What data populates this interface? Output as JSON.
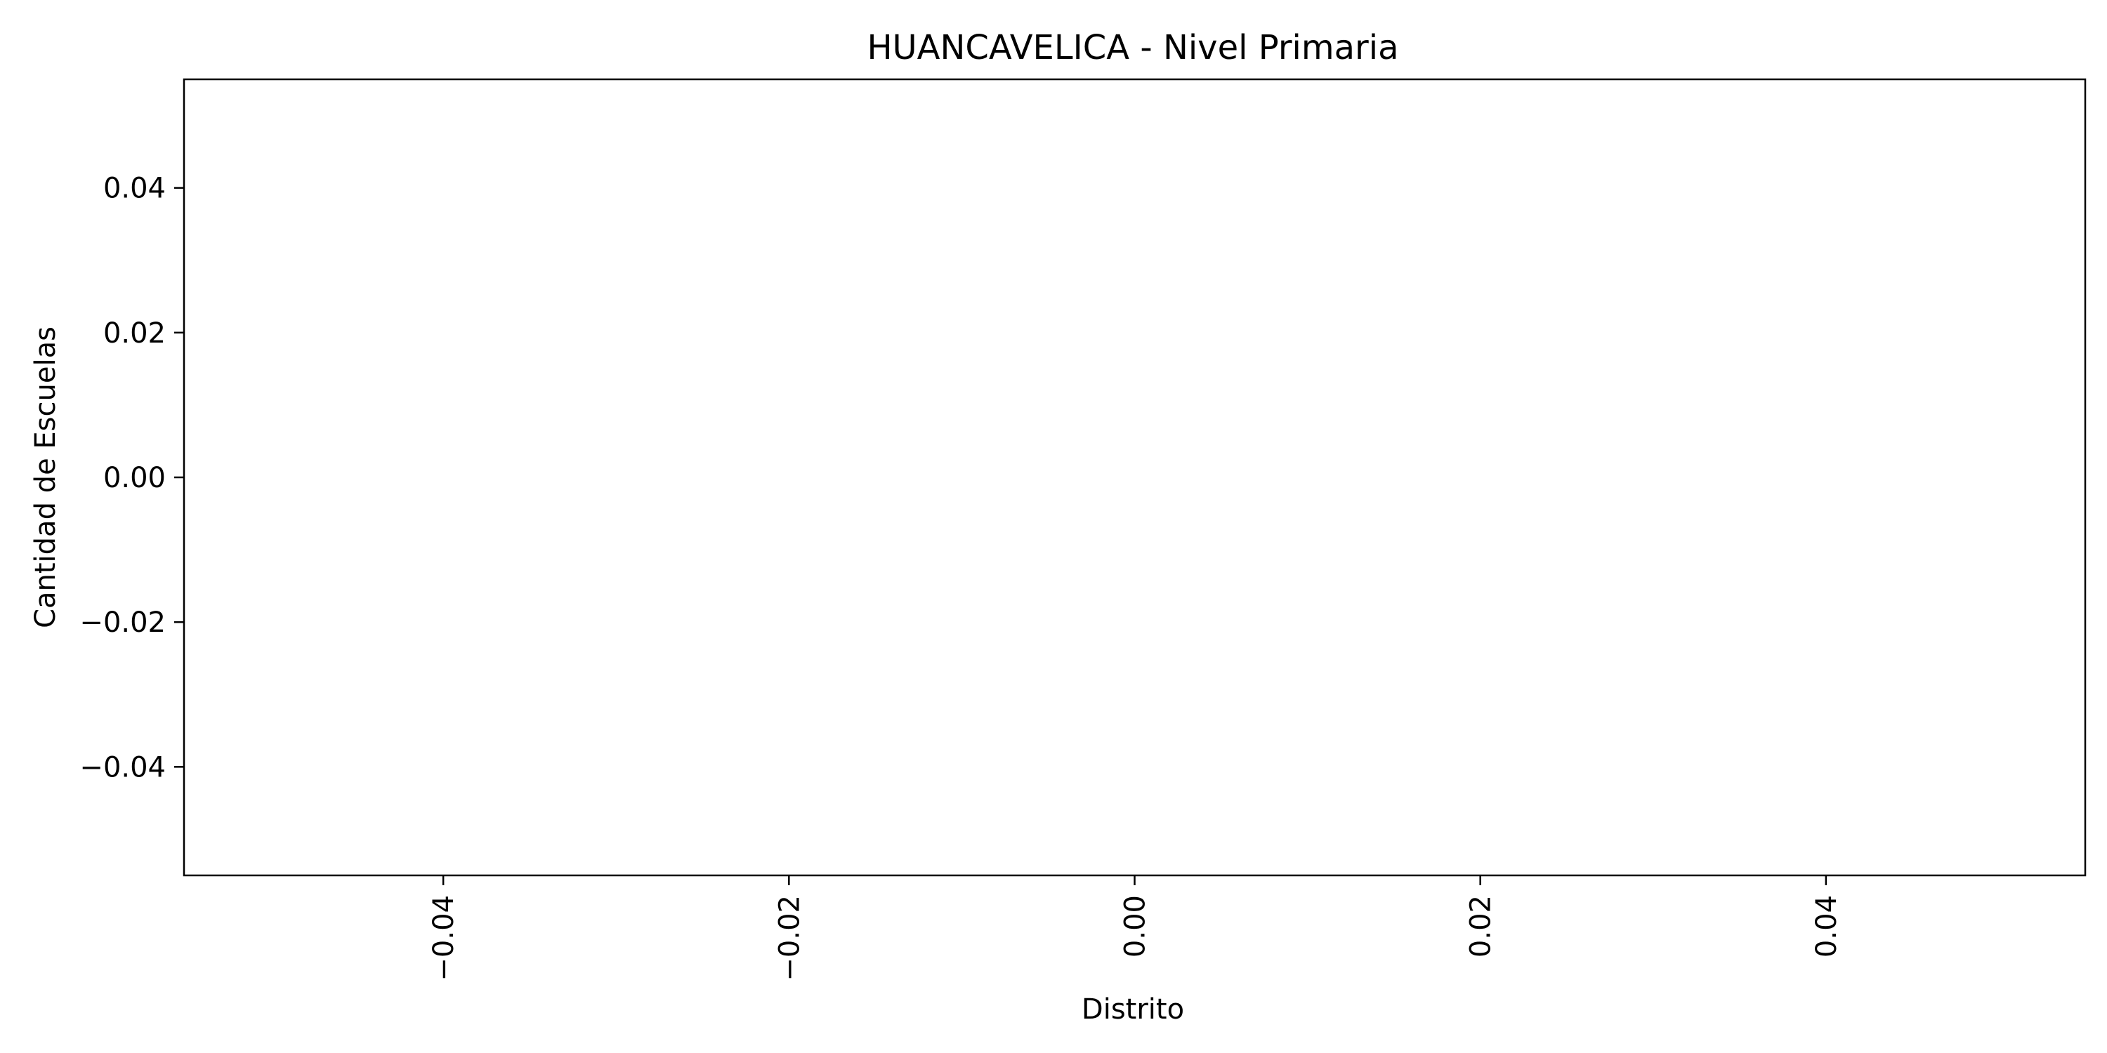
{
  "chart_data": {
    "type": "bar",
    "title": "HUANCAVELICA - Nivel Primaria",
    "xlabel": "Distrito",
    "ylabel": "Cantidad de Escuelas",
    "categories": [],
    "values": [],
    "xlim": [
      -0.055,
      0.055
    ],
    "ylim": [
      -0.055,
      0.055
    ],
    "x_ticks": [
      "−0.04",
      "−0.02",
      "0.00",
      "0.02",
      "0.04"
    ],
    "x_tick_values": [
      -0.04,
      -0.02,
      0.0,
      0.02,
      0.04
    ],
    "x_tick_rotation": 90,
    "y_ticks": [
      "0.04",
      "0.02",
      "0.00",
      "−0.02",
      "−0.04"
    ],
    "y_tick_values": [
      0.04,
      0.02,
      0.0,
      -0.02,
      -0.04
    ],
    "grid": false,
    "legend": false,
    "colors": {
      "axes": "#000000",
      "background": "#ffffff"
    }
  }
}
